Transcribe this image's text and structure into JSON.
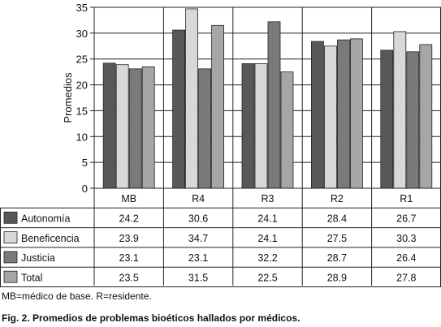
{
  "chart_data": {
    "type": "bar",
    "categories": [
      "MB",
      "R4",
      "R3",
      "R2",
      "R1"
    ],
    "ylabel": "Promedios",
    "ylim": [
      0,
      35
    ],
    "yticks": [
      0,
      5,
      10,
      15,
      20,
      25,
      30,
      35
    ],
    "grid": true,
    "legend": "table-left",
    "series": [
      {
        "name": "Autonomía",
        "color": "#585858",
        "values": [
          24.2,
          30.6,
          24.1,
          28.4,
          26.7
        ]
      },
      {
        "name": "Beneficencia",
        "color": "#d8d8d8",
        "values": [
          23.9,
          34.7,
          24.1,
          27.5,
          30.3
        ]
      },
      {
        "name": "Justicia",
        "color": "#7a7a7a",
        "values": [
          23.1,
          23.1,
          32.2,
          28.7,
          26.4
        ]
      },
      {
        "name": "Total",
        "color": "#a6a6a6",
        "values": [
          23.5,
          31.5,
          22.5,
          28.9,
          27.8
        ]
      }
    ]
  },
  "notes": "MB=médico de base.  R=residente.",
  "caption": "Fig. 2. Promedios de problemas bioéticos hallados por médicos."
}
